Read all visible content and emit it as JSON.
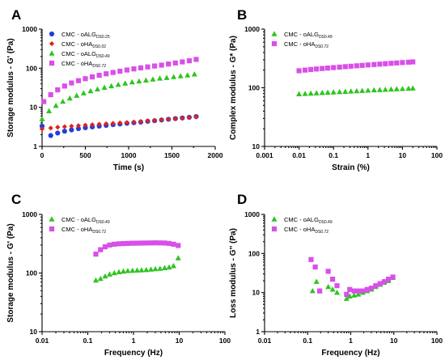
{
  "chart_data": [
    {
      "panel": "A",
      "type": "scatter",
      "xlabel": "Time (s)",
      "ylabel": "Storage modulus - G' (Pa)",
      "xscale": "linear",
      "yscale": "log",
      "xlim": [
        0,
        2000
      ],
      "ylim": [
        1,
        1000
      ],
      "xticks": [
        0,
        500,
        1000,
        1500,
        2000
      ],
      "xtick_labels": [
        "0",
        "500",
        "1000",
        "1500",
        "2000"
      ],
      "yticks": [
        1,
        10,
        100,
        1000
      ],
      "ytick_labels": [
        "1",
        "10",
        "100",
        "1000"
      ],
      "legend_position": "top-left",
      "series": [
        {
          "name": "CMC - oALG",
          "subscript": "DS0.25",
          "color": "#1f3fdc",
          "marker": "circle",
          "x": [
            0,
            100,
            180,
            260,
            340,
            420,
            500,
            580,
            660,
            740,
            820,
            900,
            980,
            1060,
            1140,
            1220,
            1300,
            1380,
            1460,
            1540,
            1620,
            1700,
            1780
          ],
          "y": [
            3.3,
            1.9,
            2.2,
            2.45,
            2.65,
            2.85,
            3.0,
            3.15,
            3.3,
            3.45,
            3.6,
            3.75,
            3.9,
            4.05,
            4.2,
            4.4,
            4.55,
            4.75,
            4.95,
            5.15,
            5.35,
            5.55,
            5.8
          ]
        },
        {
          "name": "CMC - oHA",
          "subscript": "DS0.02",
          "color": "#e0231b",
          "marker": "diamond",
          "x": [
            0,
            100,
            180,
            260,
            340,
            420,
            500,
            580,
            660,
            740,
            820,
            900,
            980,
            1060,
            1140,
            1220,
            1300,
            1380,
            1460,
            1540,
            1620,
            1700,
            1780
          ],
          "y": [
            2.8,
            2.95,
            3.1,
            3.2,
            3.3,
            3.4,
            3.5,
            3.6,
            3.7,
            3.8,
            3.9,
            4.0,
            4.1,
            4.2,
            4.35,
            4.5,
            4.65,
            4.8,
            4.95,
            5.1,
            5.3,
            5.5,
            5.7
          ]
        },
        {
          "name": "CMC - oALG",
          "subscript": "DS0.49",
          "color": "#2ec41f",
          "marker": "triangle",
          "x": [
            0,
            80,
            160,
            240,
            320,
            400,
            480,
            560,
            640,
            720,
            800,
            880,
            960,
            1040,
            1120,
            1200,
            1280,
            1360,
            1440,
            1520,
            1600,
            1680,
            1760
          ],
          "y": [
            5,
            8,
            11,
            14,
            17,
            20,
            23,
            26,
            29,
            32,
            35,
            38,
            41,
            44,
            46.5,
            49,
            52,
            55,
            57,
            60,
            63,
            66,
            70
          ]
        },
        {
          "name": "CMC - oHA",
          "subscript": "DS0.72",
          "color": "#d94fe8",
          "marker": "square",
          "x": [
            20,
            100,
            180,
            260,
            340,
            420,
            500,
            580,
            660,
            740,
            820,
            900,
            980,
            1060,
            1140,
            1220,
            1300,
            1380,
            1460,
            1540,
            1620,
            1700,
            1780
          ],
          "y": [
            14,
            21,
            28,
            35,
            42,
            48,
            54,
            60,
            66,
            72,
            78,
            84,
            90,
            96,
            102,
            108,
            114,
            120,
            128,
            136,
            145,
            155,
            168
          ]
        }
      ]
    },
    {
      "panel": "B",
      "type": "scatter",
      "xlabel": "Strain (%)",
      "ylabel": "Complex modulus - G* (Pa)",
      "xscale": "log",
      "yscale": "log",
      "xlim": [
        0.001,
        100
      ],
      "ylim": [
        10,
        1000
      ],
      "xticks": [
        0.001,
        0.01,
        0.1,
        1,
        10,
        100
      ],
      "xtick_labels": [
        "0.001",
        "0.01",
        "0.1",
        "1",
        "10",
        "100"
      ],
      "yticks": [
        10,
        100,
        1000
      ],
      "ytick_labels": [
        "10",
        "100",
        "1000"
      ],
      "legend_position": "top-left",
      "series": [
        {
          "name": "CMC - oALG",
          "subscript": "DS0.49",
          "color": "#2ec41f",
          "marker": "triangle",
          "x": [
            0.01,
            0.015,
            0.022,
            0.032,
            0.047,
            0.068,
            0.1,
            0.15,
            0.22,
            0.32,
            0.47,
            0.68,
            1,
            1.5,
            2.2,
            3.2,
            4.7,
            6.8,
            10,
            15,
            20
          ],
          "y": [
            78,
            79,
            80,
            81,
            82,
            83,
            84,
            85,
            86,
            87,
            88,
            89,
            90,
            91,
            92,
            93,
            94,
            95,
            96,
            97,
            98
          ]
        },
        {
          "name": "CMC - oHA",
          "subscript": "DS0.72",
          "color": "#d94fe8",
          "marker": "square",
          "x": [
            0.01,
            0.015,
            0.022,
            0.032,
            0.047,
            0.068,
            0.1,
            0.15,
            0.22,
            0.32,
            0.47,
            0.68,
            1,
            1.5,
            2.2,
            3.2,
            4.7,
            6.8,
            10,
            15,
            20
          ],
          "y": [
            195,
            200,
            205,
            209,
            213,
            217,
            221,
            225,
            229,
            233,
            237,
            241,
            245,
            249,
            253,
            257,
            261,
            265,
            269,
            273,
            276
          ]
        }
      ]
    },
    {
      "panel": "C",
      "type": "scatter",
      "xlabel": "Frequency (Hz)",
      "ylabel": "Storage modulus - G' (Pa)",
      "xscale": "log",
      "yscale": "log",
      "xlim": [
        0.01,
        100
      ],
      "ylim": [
        10,
        1000
      ],
      "xticks": [
        0.01,
        0.1,
        1,
        10,
        100
      ],
      "xtick_labels": [
        "0.01",
        "0.1",
        "1",
        "10",
        "100"
      ],
      "yticks": [
        10,
        100,
        1000
      ],
      "ytick_labels": [
        "10",
        "100",
        "1000"
      ],
      "legend_position": "top-left",
      "series": [
        {
          "name": "CMC - oALG",
          "subscript": "DS0.49",
          "color": "#2ec41f",
          "marker": "triangle",
          "x": [
            0.15,
            0.19,
            0.24,
            0.3,
            0.38,
            0.48,
            0.6,
            0.75,
            0.95,
            1.2,
            1.5,
            1.9,
            2.4,
            3,
            3.8,
            4.8,
            6,
            7.5,
            9.5
          ],
          "y": [
            75,
            80,
            88,
            95,
            100,
            104,
            107,
            109,
            110,
            111,
            112,
            113,
            115,
            117,
            119,
            122,
            125,
            132,
            180
          ]
        },
        {
          "name": "CMC - oHA",
          "subscript": "DS0.72",
          "color": "#d94fe8",
          "marker": "square",
          "x": [
            0.15,
            0.19,
            0.24,
            0.3,
            0.38,
            0.48,
            0.6,
            0.75,
            0.95,
            1.2,
            1.5,
            1.9,
            2.4,
            3,
            3.8,
            4.8,
            6,
            7.5,
            9.5
          ],
          "y": [
            210,
            250,
            280,
            300,
            310,
            315,
            318,
            320,
            322,
            323,
            324,
            325,
            326,
            327,
            326,
            325,
            320,
            310,
            295
          ]
        }
      ]
    },
    {
      "panel": "D",
      "type": "scatter",
      "xlabel": "Frequency (Hz)",
      "ylabel": "Loss modulus - G'' (Pa)",
      "xscale": "log",
      "yscale": "log",
      "xlim": [
        0.01,
        100
      ],
      "ylim": [
        1,
        1000
      ],
      "xticks": [
        0.01,
        0.1,
        1,
        10,
        100
      ],
      "xtick_labels": [
        "0.01",
        "0.1",
        "1",
        "10",
        "100"
      ],
      "yticks": [
        1,
        10,
        100,
        1000
      ],
      "ytick_labels": [
        "1",
        "10",
        "100",
        "1000"
      ],
      "legend_position": "top-left",
      "series": [
        {
          "name": "CMC - oALG",
          "subscript": "DS0.49",
          "color": "#2ec41f",
          "marker": "triangle",
          "x": [
            0.13,
            0.16,
            0.19,
            0.3,
            0.38,
            0.48,
            0.8,
            0.95,
            1.2,
            1.5,
            1.9,
            2.4,
            3,
            3.8,
            4.8,
            6,
            7.5,
            9.5
          ],
          "y": [
            11,
            19,
            11,
            14,
            12,
            10,
            7,
            8,
            8.5,
            9,
            10,
            11,
            12,
            14,
            16,
            18,
            20,
            24
          ]
        },
        {
          "name": "CMC - oHA",
          "subscript": "DS0.72",
          "color": "#d94fe8",
          "marker": "square",
          "x": [
            0.12,
            0.15,
            0.19,
            0.3,
            0.38,
            0.48,
            0.8,
            0.95,
            1.2,
            1.5,
            1.9,
            2.4,
            3,
            3.8,
            4.8,
            6,
            7.5,
            9.5
          ],
          "y": [
            70,
            45,
            11,
            35,
            22,
            15,
            9,
            12,
            11,
            11,
            11,
            12,
            13,
            15,
            17,
            19,
            22,
            25
          ]
        }
      ]
    }
  ]
}
